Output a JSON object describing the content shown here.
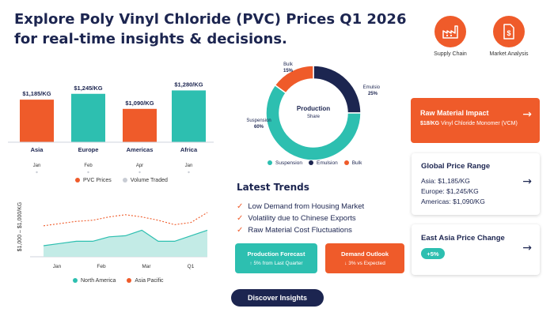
{
  "header": {
    "title_line1": "Explore Poly Vinyl Chloride (PVC) Prices Q1 2026",
    "title_line2": "for real-time insights & decisions.",
    "icons": [
      {
        "name": "factory-icon",
        "label": "Supply Chain"
      },
      {
        "name": "document-icon",
        "label": "Market Analysis"
      }
    ]
  },
  "colors": {
    "orange": "#ef5b2a",
    "teal": "#2dbfb0",
    "navy": "#1c2550"
  },
  "chart_data": [
    {
      "type": "bar",
      "categories": [
        "Asia",
        "Europe",
        "Americas",
        "Africa"
      ],
      "sublabels": [
        "Jan",
        "Feb",
        "Apr",
        "Jan"
      ],
      "values": [
        1185,
        1245,
        1090,
        1280
      ],
      "data_labels": [
        "$1,185/KG",
        "$1,245/KG",
        "$1,090/KG",
        "$1,280/KG"
      ],
      "bar_colors": [
        "#ef5b2a",
        "#2dbfb0",
        "#ef5b2a",
        "#2dbfb0"
      ],
      "legend": [
        "PVC Prices",
        "Volume Traded"
      ],
      "ylim": [
        0,
        1400
      ]
    },
    {
      "type": "line",
      "x_ticks": [
        "Jan",
        "Feb",
        "Mar",
        "Q1"
      ],
      "ylabel": "$1,000 – $1,000/KG",
      "ylim": [
        0,
        100
      ],
      "series": [
        {
          "name": "North America",
          "color": "#2dbfb0",
          "values": [
            20,
            24,
            28,
            28,
            36,
            38,
            48,
            28,
            28,
            38,
            48
          ]
        },
        {
          "name": "Asia Pacific",
          "color": "#ef5b2a",
          "values": [
            56,
            60,
            64,
            66,
            72,
            76,
            72,
            66,
            58,
            62,
            80
          ]
        }
      ]
    },
    {
      "type": "pie",
      "title": "Production",
      "subtitle": "Share",
      "labels": [
        "Suspension",
        "Emulsion",
        "Bulk"
      ],
      "values": [
        60,
        25,
        15
      ],
      "slice_labels": [
        "60%",
        "25%",
        "15%"
      ],
      "colors": [
        "#2dbfb0",
        "#1c2550",
        "#ef5b2a"
      ]
    }
  ],
  "trends": {
    "title": "Latest Trends",
    "items": [
      "Low Demand from Housing Market",
      "Volatility due to Chinese Exports",
      "Raw Material Cost Fluctuations"
    ]
  },
  "forecast": {
    "title": "Production Forecast",
    "detail": "↑ 5% from Last Quarter"
  },
  "outlook": {
    "title": "Demand Outlook",
    "detail": "↓ 3% vs Expected"
  },
  "cta": {
    "label": "Discover Insights"
  },
  "raw_material": {
    "title": "Raw Material Impact",
    "price": "$18/KG",
    "detail": "Vinyl Chloride Monomer (VCM)"
  },
  "global_range": {
    "title": "Global Price Range",
    "rows": [
      {
        "region": "Asia:",
        "value": "$1,185/KG"
      },
      {
        "region": "Europe:",
        "value": "$1,245/KG"
      },
      {
        "region": "Americas:",
        "value": "$1,090/KG"
      }
    ]
  },
  "east_asia": {
    "title": "East Asia Price Change",
    "badge": "+5%"
  }
}
